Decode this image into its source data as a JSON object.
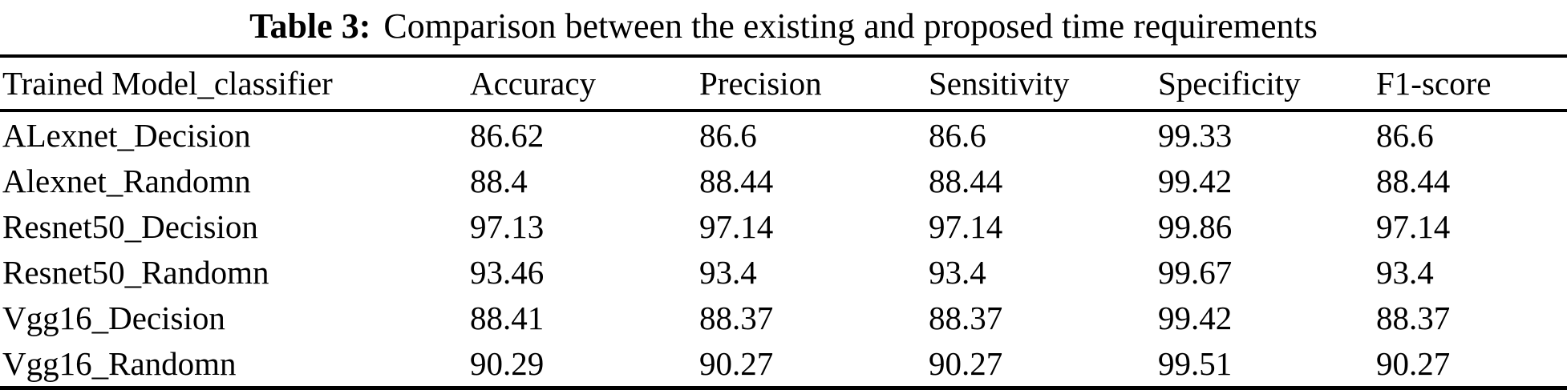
{
  "caption": {
    "label": "Table 3:",
    "text": "Comparison between the existing and proposed time requirements"
  },
  "table": {
    "headers": [
      "Trained Model_classifier",
      "Accuracy",
      "Precision",
      "Sensitivity",
      "Specificity",
      "F1-score"
    ],
    "rows": [
      [
        "ALexnet_Decision",
        "86.62",
        "86.6",
        "86.6",
        "99.33",
        "86.6"
      ],
      [
        "Alexnet_Randomn",
        "88.4",
        "88.44",
        "88.44",
        "99.42",
        "88.44"
      ],
      [
        "Resnet50_Decision",
        "97.13",
        "97.14",
        "97.14",
        "99.86",
        "97.14"
      ],
      [
        "Resnet50_Randomn",
        "93.46",
        "93.4",
        "93.4",
        "99.67",
        "93.4"
      ],
      [
        "Vgg16_Decision",
        "88.41",
        "88.37",
        "88.37",
        "99.42",
        "88.37"
      ],
      [
        "Vgg16_Randomn",
        "90.29",
        "90.27",
        "90.27",
        "99.51",
        "90.27"
      ]
    ]
  },
  "chart_data": {
    "type": "table",
    "title": "Table 3: Comparison between the existing and proposed time requirements",
    "categories": [
      "ALexnet_Decision",
      "Alexnet_Randomn",
      "Resnet50_Decision",
      "Resnet50_Randomn",
      "Vgg16_Decision",
      "Vgg16_Randomn"
    ],
    "series": [
      {
        "name": "Accuracy",
        "values": [
          86.62,
          88.4,
          97.13,
          93.46,
          88.41,
          90.29
        ]
      },
      {
        "name": "Precision",
        "values": [
          86.6,
          88.44,
          97.14,
          93.4,
          88.37,
          90.27
        ]
      },
      {
        "name": "Sensitivity",
        "values": [
          86.6,
          88.44,
          97.14,
          93.4,
          88.37,
          90.27
        ]
      },
      {
        "name": "Specificity",
        "values": [
          99.33,
          99.42,
          99.86,
          99.67,
          99.42,
          99.51
        ]
      },
      {
        "name": "F1-score",
        "values": [
          86.6,
          88.44,
          97.14,
          93.4,
          88.37,
          90.27
        ]
      }
    ]
  },
  "colors": {
    "background": "#ffffff",
    "text": "#000000",
    "rule": "#000000"
  }
}
